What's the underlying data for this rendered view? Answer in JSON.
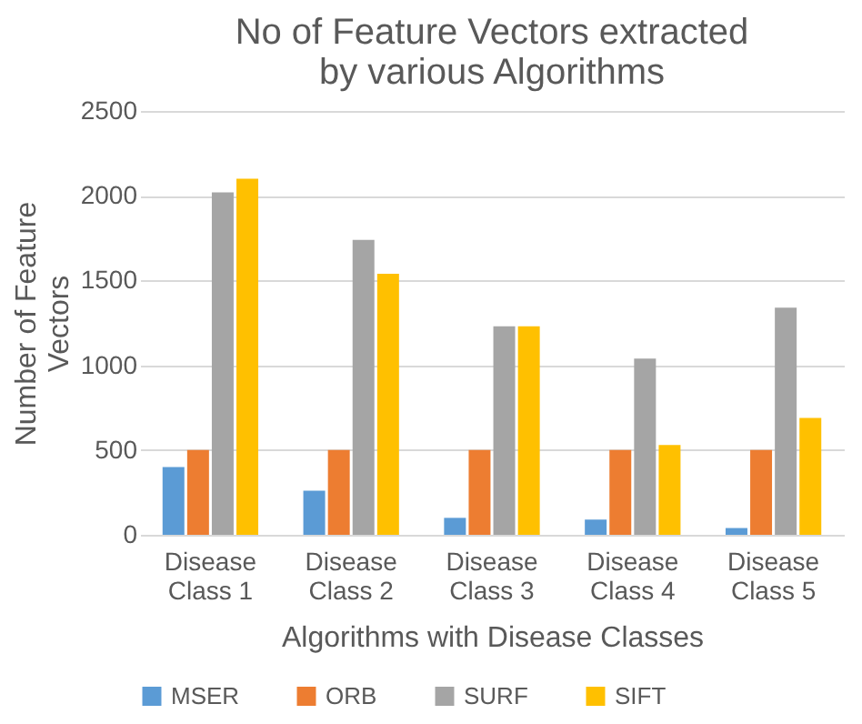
{
  "chart_data": {
    "type": "bar",
    "title": "No of Feature Vectors extracted by various Algorithms",
    "xlabel": "Algorithms with Disease Classes",
    "ylabel": "Number of Feature Vectors",
    "categories": [
      "Disease Class 1",
      "Disease Class 2",
      "Disease Class 3",
      "Disease Class 4",
      "Disease Class 5"
    ],
    "series": [
      {
        "name": "MSER",
        "color": "#5b9bd5",
        "values": [
          400,
          260,
          100,
          90,
          40
        ]
      },
      {
        "name": "ORB",
        "color": "#ed7d31",
        "values": [
          500,
          500,
          500,
          500,
          500
        ]
      },
      {
        "name": "SURF",
        "color": "#a5a5a5",
        "values": [
          2020,
          1740,
          1230,
          1040,
          1340
        ]
      },
      {
        "name": "SIFT",
        "color": "#ffc000",
        "values": [
          2100,
          1540,
          1230,
          530,
          690
        ]
      }
    ],
    "ylim": [
      0,
      2500
    ],
    "yticks": [
      0,
      500,
      1000,
      1500,
      2000,
      2500
    ],
    "grid": "y",
    "legend": "bottom"
  }
}
